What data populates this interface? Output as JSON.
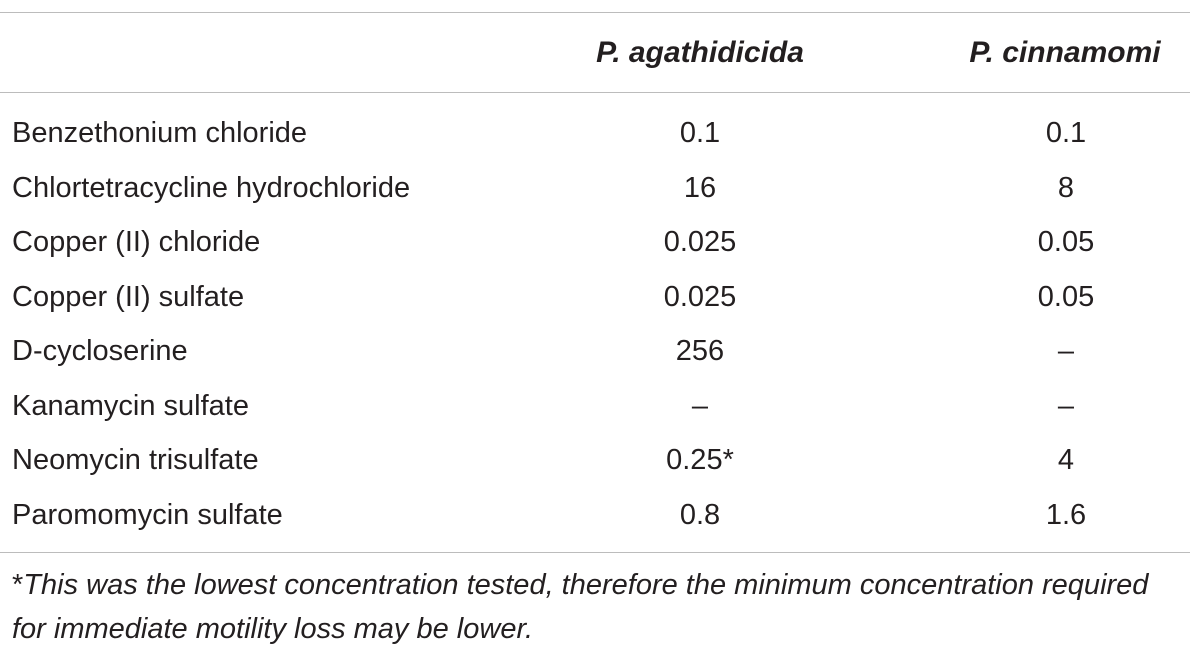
{
  "table": {
    "columns": [
      "",
      "P. agathidicida",
      "P. cinnamomi"
    ],
    "rows": [
      {
        "compound_prefix": "",
        "compound": "Benzethonium chloride",
        "p_agathidicida": "0.1",
        "p_cinnamomi": "0.1"
      },
      {
        "compound_prefix": "",
        "compound": "Chlortetracycline hydrochloride",
        "p_agathidicida": "16",
        "p_cinnamomi": "8"
      },
      {
        "compound_prefix": "",
        "compound": "Copper (II) chloride",
        "p_agathidicida": "0.025",
        "p_cinnamomi": "0.05"
      },
      {
        "compound_prefix": "",
        "compound": "Copper (II) sulfate",
        "p_agathidicida": "0.025",
        "p_cinnamomi": "0.05"
      },
      {
        "compound_prefix": "D",
        "compound": "-cycloserine",
        "p_agathidicida": "256",
        "p_cinnamomi": "–"
      },
      {
        "compound_prefix": "",
        "compound": "Kanamycin sulfate",
        "p_agathidicida": "–",
        "p_cinnamomi": "–"
      },
      {
        "compound_prefix": "",
        "compound": "Neomycin trisulfate",
        "p_agathidicida": "0.25*",
        "p_cinnamomi": "4"
      },
      {
        "compound_prefix": "",
        "compound": "Paromomycin sulfate",
        "p_agathidicida": "0.8",
        "p_cinnamomi": "1.6"
      }
    ],
    "footnote_mark": "*",
    "footnote_text": "This was the lowest concentration tested, therefore the minimum concentration required for immediate motility loss may be lower."
  }
}
